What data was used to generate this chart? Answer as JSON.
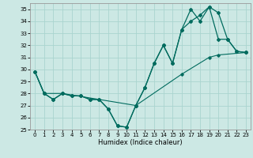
{
  "xlabel": "Humidex (Indice chaleur)",
  "xlim": [
    -0.5,
    23.5
  ],
  "ylim": [
    25,
    35.5
  ],
  "yticks": [
    25,
    26,
    27,
    28,
    29,
    30,
    31,
    32,
    33,
    34,
    35
  ],
  "xticks": [
    0,
    1,
    2,
    3,
    4,
    5,
    6,
    7,
    8,
    9,
    10,
    11,
    12,
    13,
    14,
    15,
    16,
    17,
    18,
    19,
    20,
    21,
    22,
    23
  ],
  "bg_color": "#cce8e4",
  "line_color": "#006b5e",
  "grid_color": "#aad4cf",
  "line1_x": [
    0,
    1,
    2,
    3,
    4,
    5,
    6,
    7,
    8,
    9,
    10,
    11,
    12,
    13,
    14,
    15,
    16,
    17,
    18,
    19,
    20,
    21,
    22,
    23
  ],
  "line1_y": [
    29.8,
    28.0,
    27.5,
    28.0,
    27.8,
    27.8,
    27.5,
    27.5,
    26.7,
    25.3,
    25.2,
    27.0,
    28.5,
    30.5,
    32.0,
    30.5,
    33.3,
    35.0,
    34.0,
    35.2,
    32.5,
    32.5,
    31.5,
    31.4
  ],
  "line2_x": [
    0,
    1,
    2,
    3,
    4,
    5,
    6,
    7,
    8,
    9,
    10,
    11,
    12,
    13,
    14,
    15,
    16,
    17,
    18,
    19,
    20,
    21,
    22,
    23
  ],
  "line2_y": [
    29.8,
    28.0,
    27.5,
    28.0,
    27.8,
    27.8,
    27.5,
    27.5,
    26.7,
    25.3,
    25.2,
    27.0,
    28.5,
    30.5,
    32.0,
    30.5,
    33.3,
    34.0,
    34.5,
    35.2,
    34.7,
    32.5,
    31.5,
    31.4
  ],
  "line3_x": [
    0,
    1,
    3,
    11,
    16,
    19,
    20,
    23
  ],
  "line3_y": [
    29.8,
    28.0,
    28.0,
    27.0,
    29.6,
    31.0,
    31.2,
    31.4
  ]
}
